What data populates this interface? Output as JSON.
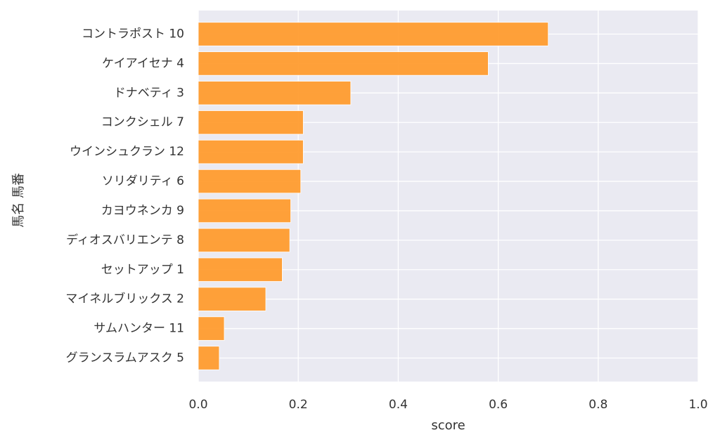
{
  "chart_data": {
    "type": "bar",
    "orientation": "horizontal",
    "categories": [
      "コントラポスト 10",
      "ケイアイセナ 4",
      "ドナベティ 3",
      "コンクシェル 7",
      "ウインシュクラン 12",
      "ソリダリティ 6",
      "カヨウネンカ 9",
      "ディオスバリエンテ 8",
      "セットアップ 1",
      "マイネルブリックス 2",
      "サムハンター 11",
      "グランスラムアスク 5"
    ],
    "values": [
      0.7,
      0.58,
      0.305,
      0.21,
      0.21,
      0.205,
      0.185,
      0.183,
      0.168,
      0.135,
      0.052,
      0.042
    ],
    "xlabel": "score",
    "ylabel": "馬名 馬番",
    "xlim": [
      0,
      1.0
    ],
    "xticks": [
      "0.0",
      "0.2",
      "0.4",
      "0.6",
      "0.8",
      "1.0"
    ],
    "grid": true,
    "colors": {
      "bar": "#ff9929",
      "background": "#eaeaf2",
      "grid": "#ffffff"
    }
  }
}
